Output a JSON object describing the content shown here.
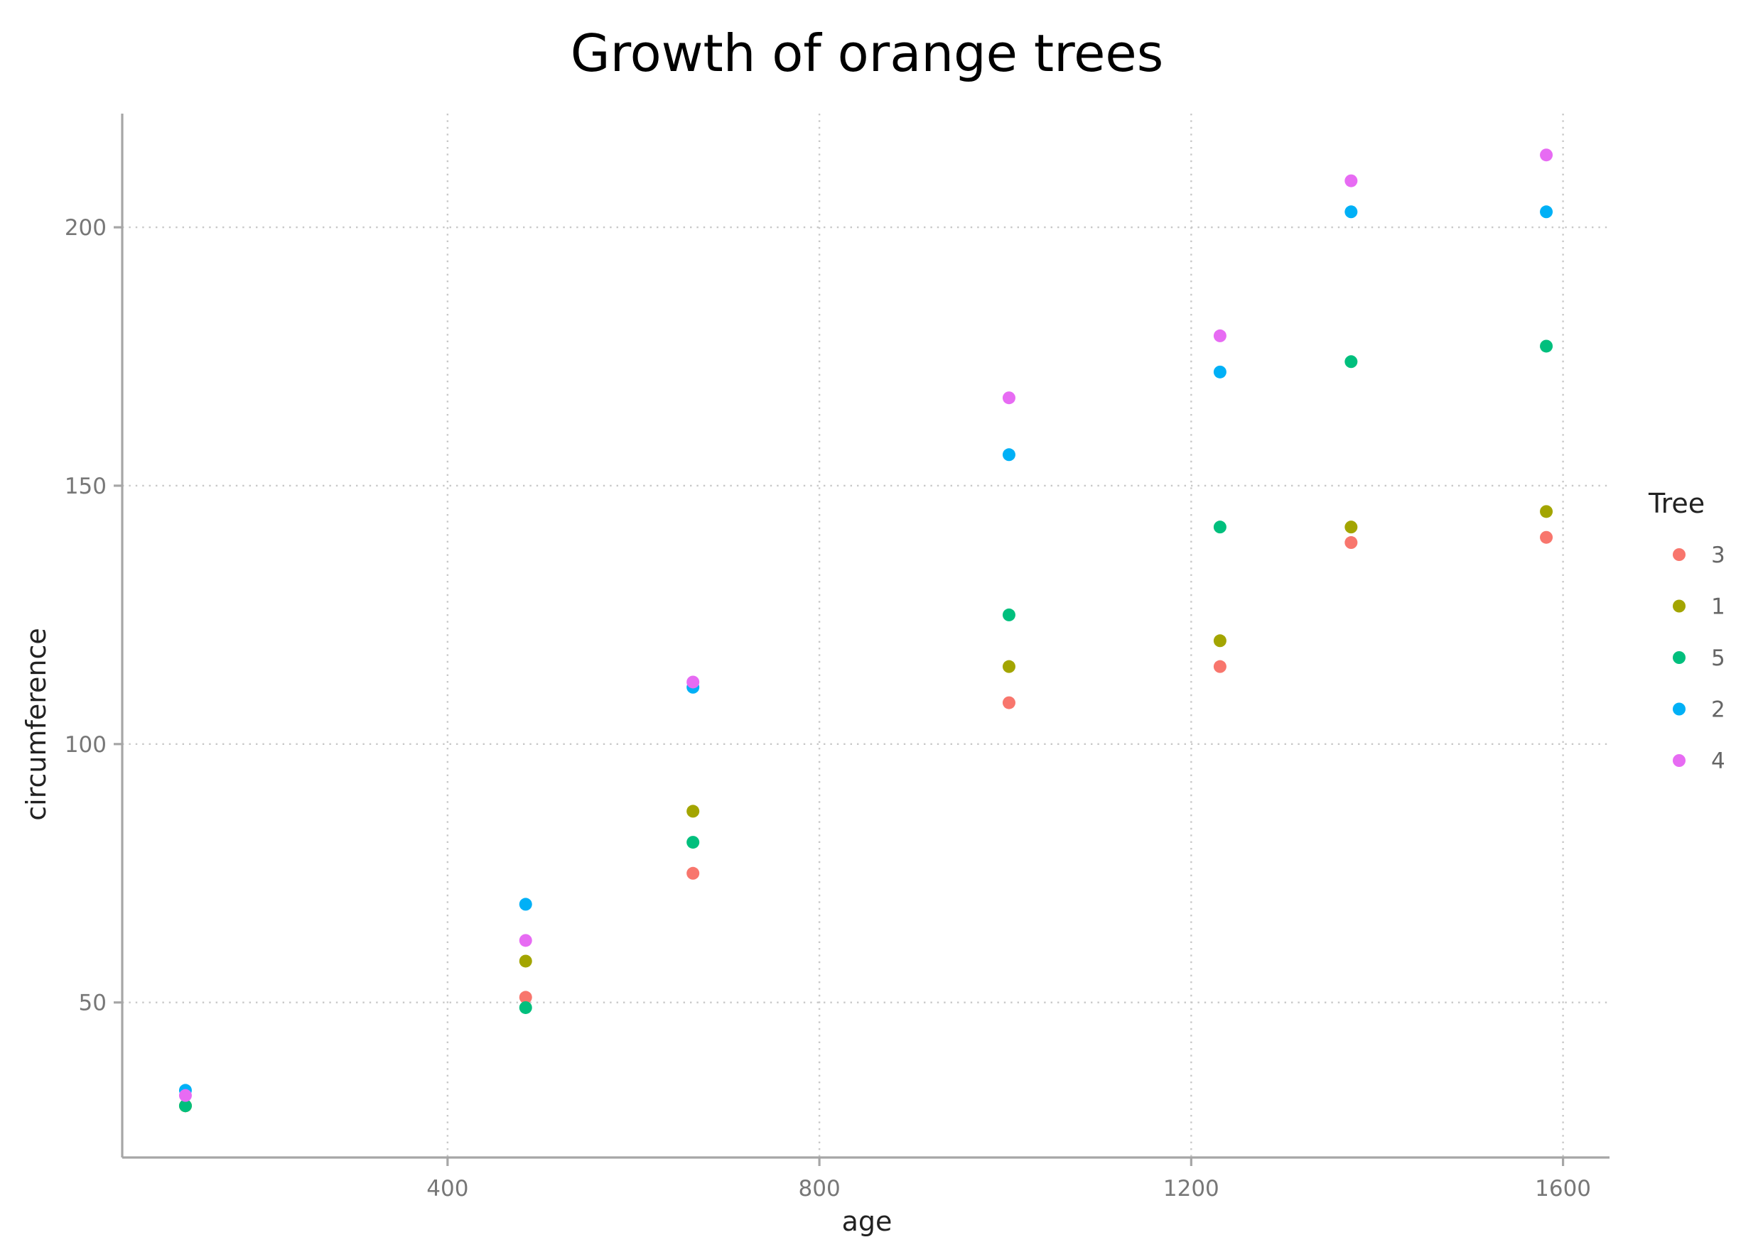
{
  "chart_data": {
    "type": "scatter",
    "title": "Growth of orange trees",
    "xlabel": "age",
    "ylabel": "circumference",
    "xlim": [
      50,
      1650
    ],
    "ylim": [
      20,
      222
    ],
    "xticks": [
      400,
      800,
      1200,
      1600
    ],
    "yticks": [
      50,
      100,
      150,
      200
    ],
    "grid": true,
    "legend": {
      "title": "Tree",
      "position": "right"
    },
    "series": [
      {
        "name": "3",
        "color": "#F8766D",
        "points": [
          [
            118,
            30
          ],
          [
            484,
            51
          ],
          [
            664,
            75
          ],
          [
            1004,
            108
          ],
          [
            1231,
            115
          ],
          [
            1372,
            139
          ],
          [
            1582,
            140
          ]
        ]
      },
      {
        "name": "1",
        "color": "#A3A500",
        "points": [
          [
            118,
            30
          ],
          [
            484,
            58
          ],
          [
            664,
            87
          ],
          [
            1004,
            115
          ],
          [
            1231,
            120
          ],
          [
            1372,
            142
          ],
          [
            1582,
            145
          ]
        ]
      },
      {
        "name": "5",
        "color": "#00BF7D",
        "points": [
          [
            118,
            30
          ],
          [
            484,
            49
          ],
          [
            664,
            81
          ],
          [
            1004,
            125
          ],
          [
            1231,
            142
          ],
          [
            1372,
            174
          ],
          [
            1582,
            177
          ]
        ]
      },
      {
        "name": "2",
        "color": "#00B0F6",
        "points": [
          [
            118,
            33
          ],
          [
            484,
            69
          ],
          [
            664,
            111
          ],
          [
            1004,
            156
          ],
          [
            1231,
            172
          ],
          [
            1372,
            203
          ],
          [
            1582,
            203
          ]
        ]
      },
      {
        "name": "4",
        "color": "#E76BF3",
        "points": [
          [
            118,
            32
          ],
          [
            484,
            62
          ],
          [
            664,
            112
          ],
          [
            1004,
            167
          ],
          [
            1231,
            179
          ],
          [
            1372,
            209
          ],
          [
            1582,
            214
          ]
        ]
      }
    ]
  }
}
